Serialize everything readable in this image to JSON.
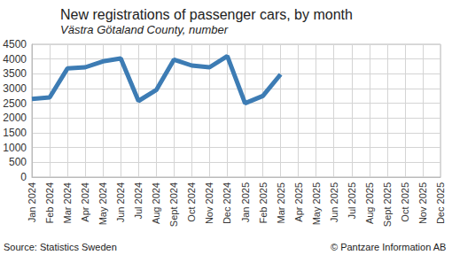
{
  "chart_data": {
    "type": "line",
    "title": "New registrations of passenger cars, by month",
    "subtitle": "Västra Götaland County, number",
    "source": "Source: Statistics Sweden",
    "credit": "© Pantzare Information AB",
    "categories": [
      "Jan 2024",
      "Feb 2024",
      "Mar 2024",
      "Apr 2024",
      "May 2024",
      "Jun 2024",
      "Jul 2024",
      "Aug 2024",
      "Sept 2024",
      "Oct 2024",
      "Nov 2024",
      "Dec 2024",
      "Jan 2025",
      "Feb 2025",
      "Mar 2025",
      "Apr 2025",
      "May 2025",
      "Jun 2025",
      "Jul 2025",
      "Aug 2025",
      "Sept 2025",
      "Oct 2025",
      "Nov 2025",
      "Dec 2025"
    ],
    "values": [
      2650,
      2700,
      3680,
      3720,
      3920,
      4020,
      2580,
      2950,
      3980,
      3780,
      3720,
      4100,
      2500,
      2750,
      3480,
      null,
      null,
      null,
      null,
      null,
      null,
      null,
      null,
      null
    ],
    "color": "#3d7cb4",
    "ylim": [
      0,
      4500
    ],
    "yticks": [
      0,
      500,
      1000,
      1500,
      2000,
      2500,
      3000,
      3500,
      4000,
      4500
    ],
    "grid": true
  }
}
